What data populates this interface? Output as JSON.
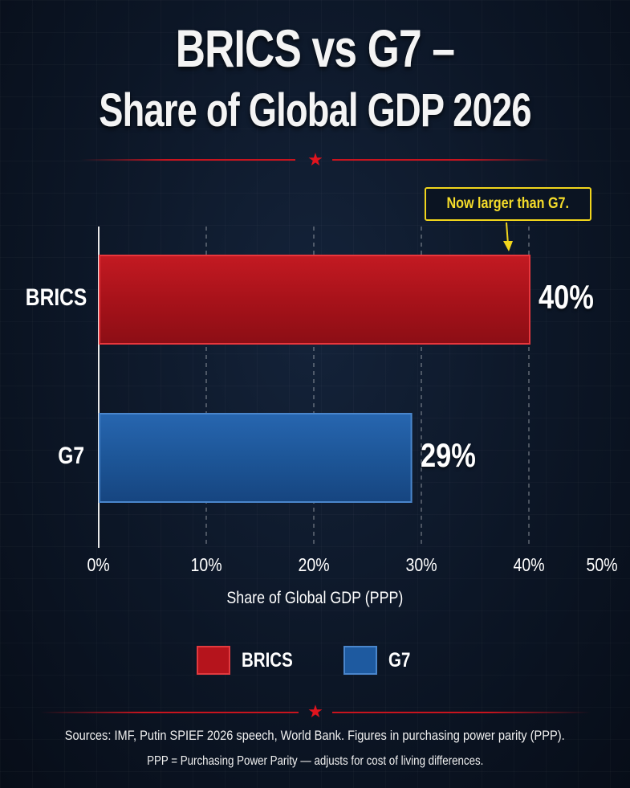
{
  "title": {
    "line1": "BRICS vs G7 –",
    "line2": "Share of Global GDP 2026"
  },
  "callout": "Now larger than G7.",
  "chart_data": {
    "type": "bar",
    "orientation": "horizontal",
    "categories": [
      "BRICS",
      "G7"
    ],
    "values": [
      40,
      29
    ],
    "value_labels": [
      "40%",
      "29%"
    ],
    "xlabel": "Share of Global GDP (PPP)",
    "xlim": [
      0,
      50
    ],
    "ticks": [
      "0%",
      "10%",
      "20%",
      "30%",
      "40%",
      "50%"
    ],
    "grid": true,
    "colors": [
      "#b5141c",
      "#1e5aa0"
    ],
    "legend": {
      "placement": "bottom",
      "entries": [
        "BRICS",
        "G7"
      ]
    }
  },
  "sources": {
    "line1": "Sources: IMF, Putin SPIEF 2026 speech, World Bank. Figures in purchasing power parity (PPP).",
    "line2": "PPP = Purchasing Power Parity — adjusts for cost of living differences."
  },
  "icons": {
    "divider_star": "★"
  }
}
